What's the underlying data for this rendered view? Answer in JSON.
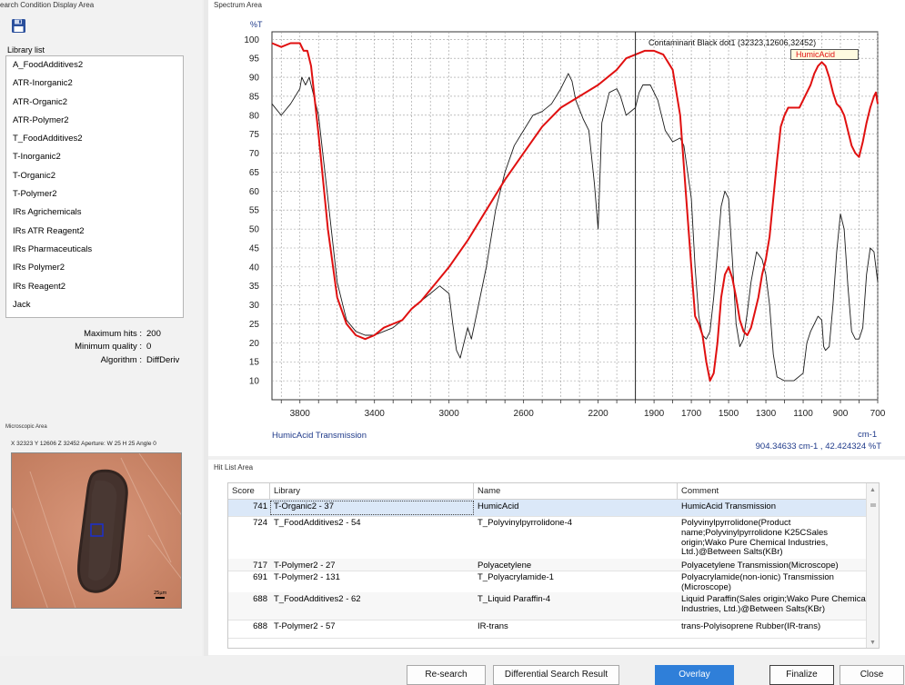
{
  "left_panel": {
    "title": "earch Condition Display Area",
    "save_icon": "floppy-disk-icon",
    "library_label": "Library list",
    "libraries": [
      "A_FoodAdditives2",
      "ATR-Inorganic2",
      "ATR-Organic2",
      "ATR-Polymer2",
      "T_FoodAdditives2",
      "T-Inorganic2",
      "T-Organic2",
      "T-Polymer2",
      "IRs Agrichemicals",
      "IRs ATR Reagent2",
      "IRs Pharmaceuticals",
      "IRs Polymer2",
      "IRs Reagent2",
      "Jack"
    ],
    "params": [
      {
        "label": "Maximum hits :",
        "value": "200"
      },
      {
        "label": "Minimum quality :",
        "value": "0"
      },
      {
        "label": "Algorithm :",
        "value": "DiffDeriv"
      }
    ]
  },
  "microscope": {
    "title": "Microscopic Area",
    "info": "X 32323  Y 12606  Z 32452    Aperture: W 25  H 25  Angle 0",
    "scale_label": "25µm"
  },
  "spectrum": {
    "title": "Spectrum Area",
    "y_unit": "%T",
    "x_unit": "cm-1",
    "sample_legend": "Contaminant Black dot1 (32323,12606,32452)",
    "reference_legend": "HumicAcid",
    "bottom_label": "HumicAcid  Transmission",
    "cursor_readout": "904.34633 cm-1 , 42.424324 %T",
    "colors": {
      "sample": "#1a1a1a",
      "reference": "#e01010",
      "accent_text": "#1f3a8a"
    }
  },
  "chart_data": {
    "type": "line",
    "xlabel": "cm-1",
    "ylabel": "%T",
    "xlim": [
      3950,
      700
    ],
    "ylim": [
      5,
      102
    ],
    "x_ticks": [
      3800,
      3400,
      3000,
      2600,
      2200,
      1900,
      1700,
      1500,
      1300,
      1100,
      900,
      700
    ],
    "y_ticks": [
      10,
      15,
      20,
      25,
      30,
      35,
      40,
      45,
      50,
      55,
      60,
      65,
      70,
      75,
      80,
      85,
      90,
      95,
      100
    ],
    "grid": true,
    "cursor_x": 2000,
    "legend_position": "top-right",
    "series": [
      {
        "name": "Contaminant Black dot1 (32323,12606,32452)",
        "color": "#1a1a1a",
        "points": [
          [
            3950,
            83
          ],
          [
            3900,
            80
          ],
          [
            3850,
            83
          ],
          [
            3800,
            87
          ],
          [
            3790,
            90
          ],
          [
            3770,
            88
          ],
          [
            3750,
            90
          ],
          [
            3730,
            86
          ],
          [
            3700,
            80
          ],
          [
            3650,
            58
          ],
          [
            3600,
            36
          ],
          [
            3550,
            26
          ],
          [
            3500,
            23
          ],
          [
            3450,
            22
          ],
          [
            3400,
            22
          ],
          [
            3350,
            23
          ],
          [
            3300,
            24
          ],
          [
            3250,
            26
          ],
          [
            3200,
            29
          ],
          [
            3150,
            31
          ],
          [
            3100,
            33
          ],
          [
            3050,
            35
          ],
          [
            3000,
            33
          ],
          [
            2980,
            25
          ],
          [
            2960,
            18
          ],
          [
            2940,
            16
          ],
          [
            2920,
            20
          ],
          [
            2900,
            24
          ],
          [
            2880,
            21
          ],
          [
            2850,
            28
          ],
          [
            2800,
            40
          ],
          [
            2750,
            55
          ],
          [
            2700,
            65
          ],
          [
            2650,
            72
          ],
          [
            2600,
            76
          ],
          [
            2550,
            80
          ],
          [
            2500,
            81
          ],
          [
            2450,
            83
          ],
          [
            2400,
            87
          ],
          [
            2360,
            91
          ],
          [
            2340,
            89
          ],
          [
            2320,
            84
          ],
          [
            2280,
            79
          ],
          [
            2250,
            76
          ],
          [
            2220,
            62
          ],
          [
            2200,
            50
          ],
          [
            2180,
            78
          ],
          [
            2140,
            86
          ],
          [
            2100,
            87
          ],
          [
            2080,
            85
          ],
          [
            2050,
            80
          ],
          [
            2000,
            82
          ],
          [
            1980,
            86
          ],
          [
            1960,
            88
          ],
          [
            1920,
            88
          ],
          [
            1880,
            84
          ],
          [
            1840,
            76
          ],
          [
            1800,
            73
          ],
          [
            1760,
            74
          ],
          [
            1740,
            72
          ],
          [
            1700,
            58
          ],
          [
            1680,
            40
          ],
          [
            1660,
            27
          ],
          [
            1640,
            22
          ],
          [
            1620,
            21
          ],
          [
            1600,
            23
          ],
          [
            1580,
            32
          ],
          [
            1560,
            44
          ],
          [
            1540,
            56
          ],
          [
            1520,
            60
          ],
          [
            1500,
            58
          ],
          [
            1480,
            42
          ],
          [
            1460,
            25
          ],
          [
            1440,
            19
          ],
          [
            1420,
            21
          ],
          [
            1400,
            28
          ],
          [
            1380,
            36
          ],
          [
            1350,
            44
          ],
          [
            1320,
            42
          ],
          [
            1300,
            38
          ],
          [
            1280,
            30
          ],
          [
            1260,
            17
          ],
          [
            1240,
            11
          ],
          [
            1200,
            10
          ],
          [
            1150,
            10
          ],
          [
            1100,
            12
          ],
          [
            1080,
            20
          ],
          [
            1060,
            23
          ],
          [
            1040,
            25
          ],
          [
            1020,
            27
          ],
          [
            1000,
            26
          ],
          [
            990,
            19
          ],
          [
            980,
            18
          ],
          [
            960,
            19
          ],
          [
            940,
            30
          ],
          [
            920,
            44
          ],
          [
            900,
            54
          ],
          [
            880,
            50
          ],
          [
            860,
            35
          ],
          [
            840,
            23
          ],
          [
            820,
            21
          ],
          [
            800,
            21
          ],
          [
            780,
            24
          ],
          [
            760,
            38
          ],
          [
            740,
            45
          ],
          [
            720,
            44
          ],
          [
            700,
            36
          ]
        ]
      },
      {
        "name": "HumicAcid",
        "color": "#e01010",
        "points": [
          [
            3950,
            99
          ],
          [
            3900,
            98
          ],
          [
            3850,
            99
          ],
          [
            3800,
            99
          ],
          [
            3780,
            97
          ],
          [
            3760,
            97
          ],
          [
            3740,
            93
          ],
          [
            3700,
            75
          ],
          [
            3650,
            50
          ],
          [
            3600,
            32
          ],
          [
            3550,
            25
          ],
          [
            3500,
            22
          ],
          [
            3450,
            21
          ],
          [
            3400,
            22
          ],
          [
            3350,
            24
          ],
          [
            3300,
            25
          ],
          [
            3250,
            26
          ],
          [
            3200,
            29
          ],
          [
            3150,
            31
          ],
          [
            3100,
            34
          ],
          [
            3000,
            40
          ],
          [
            2900,
            47
          ],
          [
            2800,
            55
          ],
          [
            2700,
            63
          ],
          [
            2600,
            70
          ],
          [
            2500,
            77
          ],
          [
            2400,
            82
          ],
          [
            2300,
            85
          ],
          [
            2200,
            88
          ],
          [
            2100,
            92
          ],
          [
            2050,
            95
          ],
          [
            2000,
            96
          ],
          [
            1950,
            97
          ],
          [
            1900,
            97
          ],
          [
            1850,
            96
          ],
          [
            1800,
            92
          ],
          [
            1760,
            80
          ],
          [
            1730,
            60
          ],
          [
            1700,
            40
          ],
          [
            1680,
            27
          ],
          [
            1660,
            25
          ],
          [
            1640,
            22
          ],
          [
            1620,
            15
          ],
          [
            1600,
            10
          ],
          [
            1580,
            12
          ],
          [
            1560,
            20
          ],
          [
            1540,
            32
          ],
          [
            1520,
            38
          ],
          [
            1500,
            40
          ],
          [
            1480,
            37
          ],
          [
            1460,
            32
          ],
          [
            1440,
            26
          ],
          [
            1420,
            23
          ],
          [
            1400,
            22
          ],
          [
            1380,
            24
          ],
          [
            1360,
            28
          ],
          [
            1340,
            32
          ],
          [
            1320,
            38
          ],
          [
            1300,
            42
          ],
          [
            1280,
            48
          ],
          [
            1260,
            58
          ],
          [
            1240,
            68
          ],
          [
            1220,
            77
          ],
          [
            1200,
            80
          ],
          [
            1180,
            82
          ],
          [
            1150,
            82
          ],
          [
            1120,
            82
          ],
          [
            1100,
            84
          ],
          [
            1060,
            88
          ],
          [
            1040,
            91
          ],
          [
            1020,
            93
          ],
          [
            1000,
            94
          ],
          [
            980,
            93
          ],
          [
            960,
            90
          ],
          [
            940,
            86
          ],
          [
            920,
            83
          ],
          [
            900,
            82
          ],
          [
            880,
            80
          ],
          [
            860,
            76
          ],
          [
            840,
            72
          ],
          [
            820,
            70
          ],
          [
            800,
            69
          ],
          [
            780,
            73
          ],
          [
            760,
            78
          ],
          [
            740,
            82
          ],
          [
            720,
            85
          ],
          [
            710,
            86
          ],
          [
            700,
            83
          ]
        ]
      }
    ]
  },
  "hit_list": {
    "title": "Hit List Area",
    "columns": [
      "Score",
      "Library",
      "Name",
      "Comment"
    ],
    "rows": [
      {
        "score": "741",
        "library": "T-Organic2 - 37",
        "name": "HumicAcid",
        "comment": "HumicAcid  Transmission"
      },
      {
        "score": "724",
        "library": "T_FoodAdditives2 - 54",
        "name": "T_Polyvinylpyrrolidone-4",
        "comment": "Polyvinylpyrrolidone(Product name;Polyvinylpyrrolidone K25CSales origin;Wako Pure Chemical Industries, Ltd.)@Between Salts(KBr)"
      },
      {
        "score": "717",
        "library": "T-Polymer2 - 27",
        "name": "Polyacetylene",
        "comment": "Polyacetylene  Transmission(Microscope)"
      },
      {
        "score": "691",
        "library": "T-Polymer2 - 131",
        "name": "T_Polyacrylamide-1",
        "comment": "Polyacrylamide(non-ionic)  Transmission (Microscope)"
      },
      {
        "score": "688",
        "library": "T_FoodAdditives2 - 62",
        "name": "T_Liquid Paraffin-4",
        "comment": "Liquid Paraffin(Sales origin;Wako Pure Chemical Industries, Ltd.)@Between Salts(KBr)"
      },
      {
        "score": "688",
        "library": "T-Polymer2 - 57",
        "name": "IR-trans",
        "comment": "trans-Polyisoprene Rubber(IR-trans)"
      }
    ]
  },
  "buttons": {
    "research": "Re-search",
    "differential": "Differential Search Result",
    "overlay": "Overlay",
    "finalize": "Finalize",
    "close": "Close"
  }
}
